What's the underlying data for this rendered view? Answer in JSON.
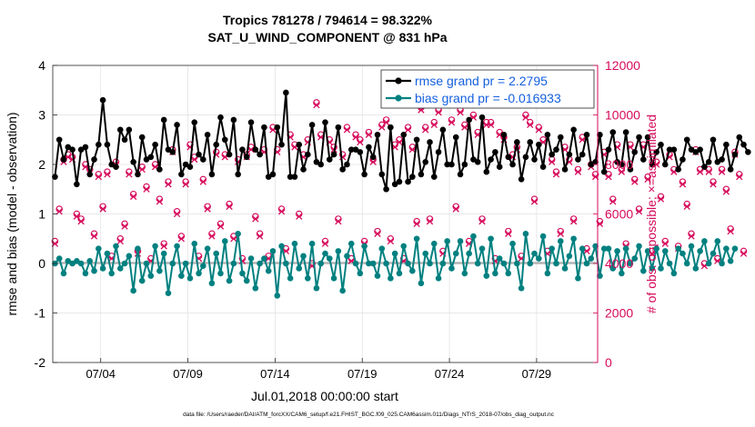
{
  "title": {
    "line1": "Tropics 781278 / 794614 = 98.322%",
    "line2": "SAT_U_WIND_COMPONENT @ 831 hPa"
  },
  "colors": {
    "rmse": "#000000",
    "bias": "#008080",
    "obs": "#d6095a",
    "zero_line": "#b3b3b3",
    "grid": "#e0e0e0"
  },
  "chart_data": {
    "type": "line",
    "title": "Tropics 781278 / 794614 = 98.322% SAT_U_WIND_COMPONENT @ 831 hPa",
    "xlabel": "Jul.01,2018 00:00:00 start",
    "ylabel": "rmse and bias (model - observation)",
    "y2label": "# of obs: o=possible; ×=assimilated",
    "xlim_days": [
      0.75,
      32.0
    ],
    "ylim": [
      -2,
      4
    ],
    "y2lim": [
      0,
      12000
    ],
    "xticks": [
      {
        "day": 3.5,
        "label": "07/04"
      },
      {
        "day": 8.5,
        "label": "07/09"
      },
      {
        "day": 13.5,
        "label": "07/14"
      },
      {
        "day": 18.5,
        "label": "07/19"
      },
      {
        "day": 23.5,
        "label": "07/24"
      },
      {
        "day": 28.5,
        "label": "07/29"
      }
    ],
    "yticks": [
      {
        "value": -2,
        "label": "-2"
      },
      {
        "value": -1,
        "label": "-1"
      },
      {
        "value": 0,
        "label": "0"
      },
      {
        "value": 1,
        "label": "1"
      },
      {
        "value": 2,
        "label": "2"
      },
      {
        "value": 3,
        "label": "3"
      },
      {
        "value": 4,
        "label": "4"
      }
    ],
    "y2ticks": [
      {
        "value": 0,
        "label": "0"
      },
      {
        "value": 2000,
        "label": "2000"
      },
      {
        "value": 4000,
        "label": "4000"
      },
      {
        "value": 6000,
        "label": "6000"
      },
      {
        "value": 8000,
        "label": "8000"
      },
      {
        "value": 10000,
        "label": "10000"
      },
      {
        "value": 12000,
        "label": "12000"
      }
    ],
    "x_start_day": 0.875,
    "x_step_day": 0.25,
    "series": [
      {
        "name": "rmse grand pr = 2.2795",
        "axis": "left",
        "values": [
          1.75,
          2.5,
          2.1,
          2.35,
          2.3,
          1.6,
          2.3,
          2.35,
          1.8,
          2.1,
          2.4,
          3.3,
          2.4,
          2.0,
          1.95,
          2.7,
          2.5,
          2.7,
          2.05,
          1.8,
          2.55,
          2.1,
          2.15,
          2.4,
          1.9,
          2.9,
          2.3,
          2.25,
          2.8,
          1.8,
          2.0,
          1.95,
          2.85,
          2.2,
          2.1,
          2.6,
          1.8,
          2.4,
          2.95,
          2.5,
          2.2,
          2.9,
          1.8,
          2.3,
          2.15,
          2.85,
          2.3,
          2.2,
          2.75,
          1.75,
          1.8,
          2.75,
          2.4,
          3.45,
          1.75,
          1.75,
          2.4,
          1.9,
          2.2,
          2.8,
          2.05,
          2.0,
          2.85,
          2.1,
          2.2,
          2.75,
          1.9,
          2.0,
          2.3,
          2.3,
          2.25,
          1.8,
          2.35,
          2.15,
          2.6,
          1.8,
          1.5,
          2.75,
          1.6,
          1.65,
          2.6,
          1.65,
          1.75,
          2.5,
          1.8,
          2.05,
          2.45,
          1.75,
          2.25,
          2.7,
          2.0,
          2.0,
          2.55,
          1.8,
          2.0,
          2.9,
          2.1,
          2.05,
          2.95,
          1.85,
          2.1,
          2.25,
          1.95,
          2.6,
          2.15,
          2.0,
          2.45,
          1.7,
          2.15,
          2.45,
          2.1,
          2.4,
          1.95,
          2.6,
          2.2,
          2.3,
          2.55,
          1.9,
          2.2,
          2.7,
          2.1,
          2.2,
          2.6,
          2.0,
          2.05,
          2.6,
          1.85,
          2.3,
          2.65,
          2.05,
          2.0,
          2.65,
          1.9,
          2.25,
          2.55,
          2.1,
          2.55,
          2.0,
          2.25,
          2.4,
          2.0,
          2.3,
          2.3,
          1.9,
          2.1,
          2.5,
          2.3,
          2.25,
          2.3,
          1.95,
          2.05,
          2.5,
          2.05,
          2.1,
          2.4,
          1.9,
          2.2,
          2.55,
          2.4,
          2.25
        ]
      },
      {
        "name": "bias grand pr = -0.016933",
        "axis": "left",
        "values": [
          0.0,
          0.1,
          -0.2,
          0.05,
          0.0,
          0.05,
          0.0,
          -0.2,
          0.05,
          -0.15,
          0.3,
          -0.1,
          0.2,
          -0.2,
          0.35,
          -0.1,
          0.0,
          0.15,
          -0.55,
          0.3,
          -0.35,
          0.0,
          -0.25,
          0.35,
          -0.15,
          0.2,
          -0.6,
          0.0,
          0.35,
          -0.25,
          0.0,
          -0.3,
          0.4,
          -0.2,
          -0.05,
          0.3,
          -0.4,
          0.2,
          -0.2,
          0.45,
          -0.35,
          0.0,
          0.6,
          -0.2,
          -0.35,
          0.1,
          -0.5,
          0.0,
          0.1,
          -0.15,
          0.25,
          -0.65,
          0.35,
          0.0,
          -0.3,
          0.4,
          -0.1,
          0.15,
          -0.3,
          0.4,
          -0.5,
          0.0,
          0.2,
          0.1,
          -0.3,
          0.25,
          -0.55,
          0.15,
          0.4,
          0.0,
          -0.2,
          0.35,
          0.0,
          0.0,
          -0.25,
          0.3,
          0.0,
          -0.3,
          0.2,
          -0.2,
          0.35,
          0.0,
          -0.15,
          0.5,
          -0.4,
          0.2,
          0.0,
          0.4,
          -0.3,
          0.0,
          0.45,
          -0.1,
          0.2,
          0.45,
          -0.2,
          0.2,
          0.55,
          0.0,
          0.3,
          -0.25,
          0.5,
          -0.2,
          0.1,
          0.0,
          -0.2,
          0.4,
          0.0,
          -0.5,
          0.6,
          0.0,
          0.2,
          0.1,
          0.55,
          -0.2,
          0.3,
          0.0,
          0.45,
          -0.1,
          0.15,
          0.5,
          -0.3,
          0.3,
          0.0,
          0.1,
          0.35,
          -0.25,
          0.3,
          0.3,
          -0.1,
          0.25,
          -0.2,
          0.3,
          0.0,
          0.1,
          0.35,
          -0.15,
          0.25,
          -0.1,
          0.3,
          -0.1,
          0.25,
          0.0,
          -0.2,
          0.3,
          0.2,
          0.0,
          0.35,
          -0.1,
          0.25,
          0.45,
          0.0,
          0.2,
          0.45,
          0.0,
          0.3,
          0.05,
          0.3
        ]
      },
      {
        "name": "possible obs (o)",
        "axis": "right",
        "values": [
          4900,
          6200,
          8200,
          8400,
          8300,
          6000,
          5800,
          8000,
          7800,
          5200,
          7600,
          6300,
          7700,
          4300,
          8100,
          5000,
          5600,
          7700,
          6800,
          4500,
          7900,
          7100,
          4200,
          8000,
          6600,
          4800,
          7300,
          8600,
          6100,
          5100,
          7300,
          8800,
          8300,
          4300,
          7400,
          6300,
          5200,
          8500,
          5600,
          8400,
          6400,
          5100,
          8200,
          4200,
          8400,
          8700,
          5900,
          5200,
          8600,
          4300,
          9500,
          8600,
          6200,
          4600,
          9200,
          8800,
          6000,
          8400,
          9000,
          4000,
          10500,
          9200,
          4900,
          9000,
          8700,
          5800,
          8400,
          9500,
          4200,
          9200,
          9000,
          4900,
          9300,
          8200,
          5300,
          9600,
          9800,
          5000,
          8800,
          9000,
          4200,
          9500,
          8700,
          5700,
          10300,
          9500,
          5800,
          9700,
          10200,
          4500,
          10600,
          9800,
          6300,
          10200,
          9600,
          4900,
          10000,
          9300,
          5800,
          9700,
          9700,
          4200,
          9300,
          9100,
          5300,
          8400,
          8700,
          4300,
          10000,
          9700,
          6600,
          9500,
          9000,
          4500,
          8200,
          7700,
          5300,
          8700,
          8200,
          5800,
          7800,
          9100,
          4600,
          8000,
          7600,
          5700,
          8500,
          7600,
          6600,
          8800,
          7800,
          4800,
          8800,
          7400,
          6200,
          8800,
          7500,
          4500,
          8100,
          6700,
          4900,
          8400,
          7800,
          4700,
          7300,
          6400,
          5200,
          8600,
          7800,
          4000,
          7800,
          7300,
          4200,
          7800,
          7000,
          5400,
          8500,
          7600,
          4500
        ]
      },
      {
        "name": "assimilated obs (×)",
        "axis": "right",
        "values": [
          4800,
          6100,
          8100,
          8300,
          8200,
          5900,
          5700,
          7900,
          7700,
          5100,
          7500,
          6200,
          7600,
          4200,
          8000,
          4900,
          5500,
          7600,
          6700,
          4400,
          7800,
          7000,
          4100,
          7900,
          6500,
          4700,
          7200,
          8500,
          6000,
          5000,
          7200,
          8700,
          8200,
          4200,
          7300,
          6200,
          5100,
          8400,
          5500,
          8300,
          6300,
          5000,
          8100,
          4100,
          8300,
          8600,
          5800,
          5100,
          8500,
          4200,
          9400,
          8500,
          6100,
          4500,
          9100,
          8700,
          5900,
          8300,
          8900,
          3900,
          10400,
          9100,
          4800,
          8900,
          8600,
          5700,
          8300,
          9400,
          4100,
          9100,
          8900,
          4800,
          9200,
          8100,
          5200,
          9500,
          9700,
          4900,
          8700,
          8900,
          4100,
          9400,
          8600,
          5600,
          10200,
          9400,
          5700,
          9600,
          10100,
          4400,
          10500,
          9700,
          6200,
          10100,
          9500,
          4800,
          9900,
          9200,
          5700,
          9600,
          9600,
          4100,
          9200,
          9000,
          5200,
          8300,
          8600,
          4200,
          9900,
          9600,
          6500,
          9400,
          8900,
          4400,
          8100,
          7600,
          5200,
          8600,
          8100,
          5700,
          7700,
          9000,
          4500,
          7900,
          7500,
          5600,
          8400,
          7500,
          6500,
          8700,
          7700,
          4700,
          8700,
          7300,
          6100,
          8700,
          7400,
          4400,
          8000,
          6600,
          4800,
          8300,
          7700,
          4600,
          7200,
          6300,
          5100,
          8500,
          7700,
          3900,
          7700,
          7200,
          4100,
          7700,
          6900,
          5300,
          8400,
          7500,
          4400
        ]
      }
    ]
  },
  "legend": {
    "rmse_label": "rmse grand pr = 2.2795",
    "bias_label": "bias grand pr = -0.016933"
  },
  "footer": {
    "datafile": "data file: /Users/raeder/DAI/ATM_forcXX/CAM6_setup/f.e21.FHIST_BGC.f09_025.CAM6assim.011/Diags_NTrS_2018-07/obs_diag_output.nc"
  }
}
